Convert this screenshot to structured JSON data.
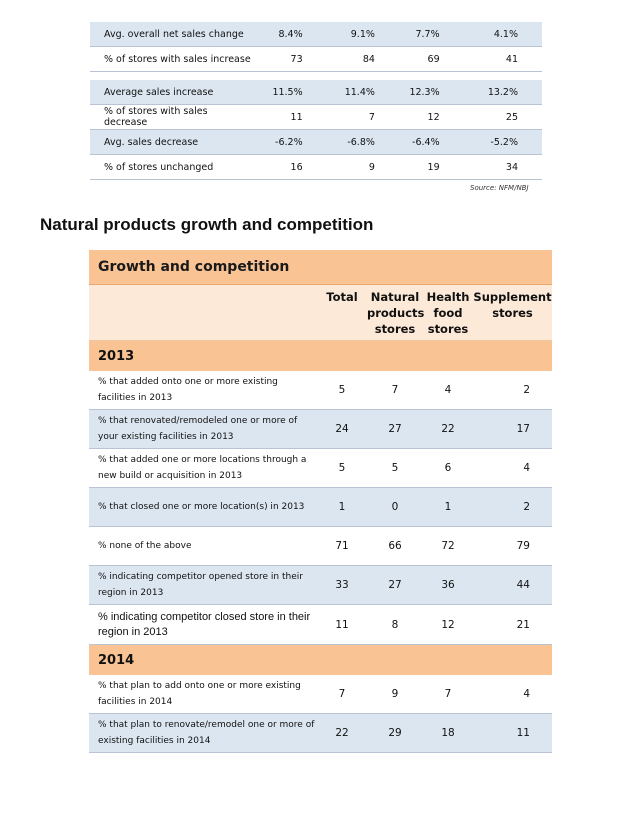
{
  "top_table": {
    "rows": [
      {
        "label": "Avg. overall net sales change",
        "v": [
          "8.4%",
          "9.1%",
          "7.7%",
          "4.1%"
        ]
      },
      {
        "label": "% of stores with sales increase",
        "v": [
          "73",
          "84",
          "69",
          "41"
        ]
      },
      {
        "label": "Average sales increase",
        "v": [
          "11.5%",
          "11.4%",
          "12.3%",
          "13.2%"
        ]
      },
      {
        "label": "% of stores with sales decrease",
        "v": [
          "11",
          "7",
          "12",
          "25"
        ]
      },
      {
        "label": "Avg. sales decrease",
        "v": [
          "-6.2%",
          "-6.8%",
          "-6.4%",
          "-5.2%"
        ]
      },
      {
        "label": "% of stores unchanged",
        "v": [
          "16",
          "9",
          "19",
          "34"
        ]
      }
    ],
    "source": "Source: NFM/NBJ"
  },
  "section_title": "Natural products growth and competition",
  "growth_table": {
    "title": "Growth and competition",
    "columns": [
      "Total",
      "Natural\nproducts\nstores",
      "Health\nfood\nstores",
      "Supplement\nstores"
    ],
    "sections": [
      {
        "year": "2013",
        "rows": [
          {
            "label": "% that added onto one or more existing facilities in 2013",
            "v": [
              "5",
              "7",
              "4",
              "2"
            ]
          },
          {
            "label": "% that renovated/remodeled one or more of your existing facilities in 2013",
            "v": [
              "24",
              "27",
              "22",
              "17"
            ]
          },
          {
            "label": "% that added one or more locations through a new build or acquisition in 2013",
            "v": [
              "5",
              "5",
              "6",
              "4"
            ]
          },
          {
            "label": "% that closed one or more location(s) in 2013",
            "v": [
              "1",
              "0",
              "1",
              "2"
            ]
          },
          {
            "label": "% none of the above",
            "v": [
              "71",
              "66",
              "72",
              "79"
            ]
          },
          {
            "label": "% indicating competitor opened store in their region in 2013",
            "v": [
              "33",
              "27",
              "36",
              "44"
            ]
          },
          {
            "label": "% indicating competitor closed store in their region in 2013",
            "v": [
              "11",
              "8",
              "12",
              "21"
            ]
          }
        ]
      },
      {
        "year": "2014",
        "rows": [
          {
            "label": "% that plan to add onto one or more existing facilities in 2014",
            "v": [
              "7",
              "9",
              "7",
              "4"
            ]
          },
          {
            "label": "% that plan to renovate/remodel one or more of existing facilities in 2014",
            "v": [
              "22",
              "29",
              "18",
              "11"
            ]
          }
        ]
      }
    ]
  },
  "colors": {
    "header_orange": "#f9c394",
    "header_light": "#fde9d7",
    "row_blue": "#dce6f1"
  }
}
